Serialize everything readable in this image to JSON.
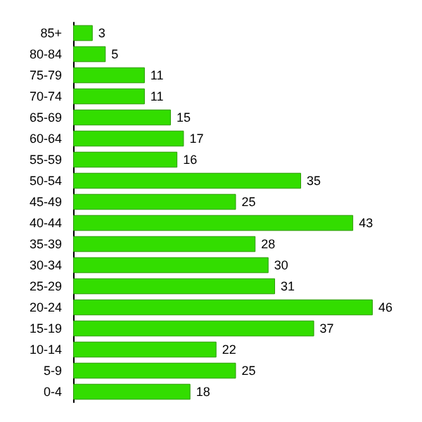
{
  "chart_data": {
    "type": "bar",
    "orientation": "horizontal",
    "categories": [
      "85+",
      "80-84",
      "75-79",
      "70-74",
      "65-69",
      "60-64",
      "55-59",
      "50-54",
      "45-49",
      "40-44",
      "35-39",
      "30-34",
      "25-29",
      "20-24",
      "15-19",
      "10-14",
      "5-9",
      "0-4"
    ],
    "values": [
      3,
      5,
      11,
      11,
      15,
      17,
      16,
      35,
      25,
      43,
      28,
      30,
      31,
      46,
      37,
      22,
      25,
      18
    ],
    "color": "#33dd00",
    "data_labels": true
  }
}
